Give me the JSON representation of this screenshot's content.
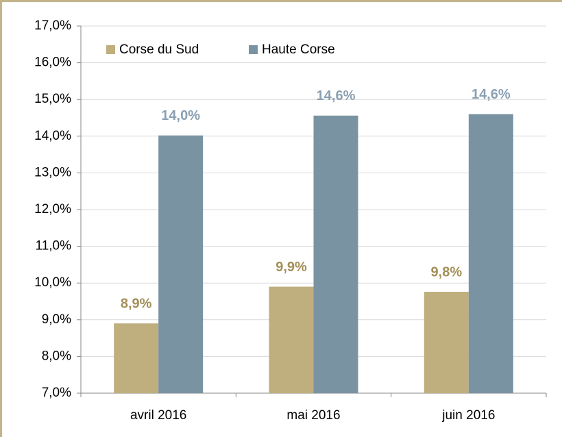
{
  "chart_data": {
    "type": "bar",
    "categories": [
      "avril 2016",
      "mai 2016",
      "juin 2016"
    ],
    "series": [
      {
        "name": "Corse du Sud",
        "color": "#bfae7e",
        "label_color": "#a38f58",
        "values": [
          8.9,
          9.9,
          9.76
        ],
        "value_labels": [
          "8,9%",
          "9,9%",
          "9,8%"
        ]
      },
      {
        "name": "Haute Corse",
        "color": "#7a93a3",
        "label_color": "#8aa0b3",
        "values": [
          14.02,
          14.56,
          14.6
        ],
        "value_labels": [
          "14,0%",
          "14,6%",
          "14,6%"
        ]
      }
    ],
    "ylim": [
      7,
      17
    ],
    "yticks": [
      {
        "value": 7,
        "label": "7,0%"
      },
      {
        "value": 8,
        "label": "8,0%"
      },
      {
        "value": 9,
        "label": "9,0%"
      },
      {
        "value": 10,
        "label": "10,0%"
      },
      {
        "value": 11,
        "label": "11,0%"
      },
      {
        "value": 12,
        "label": "12,0%"
      },
      {
        "value": 13,
        "label": "13,0%"
      },
      {
        "value": 14,
        "label": "14,0%"
      },
      {
        "value": 15,
        "label": "15,0%"
      },
      {
        "value": 16,
        "label": "16,0%"
      },
      {
        "value": 17,
        "label": "17,0%"
      }
    ],
    "grid": true,
    "legend": "top-left"
  }
}
